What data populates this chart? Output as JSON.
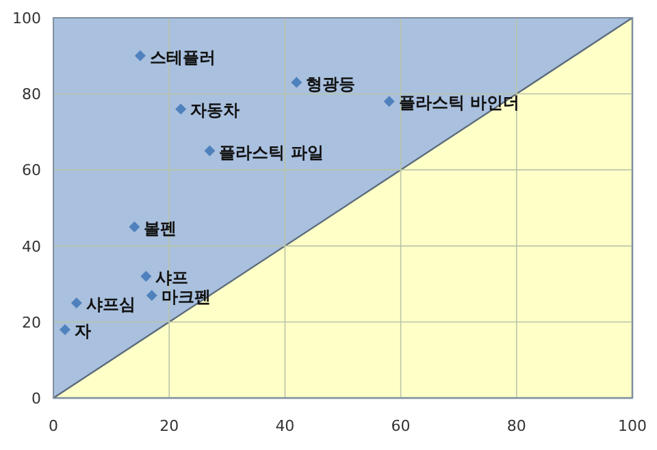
{
  "chart_data": {
    "type": "scatter",
    "xlim": [
      0,
      100
    ],
    "ylim": [
      0,
      100
    ],
    "xticks": [
      0,
      20,
      40,
      60,
      80,
      100
    ],
    "yticks": [
      0,
      20,
      40,
      60,
      80,
      100
    ],
    "grid": true,
    "series": [
      {
        "type": "area",
        "color": "#ffffc8",
        "x": [
          0,
          100
        ],
        "values": [
          0,
          100
        ]
      },
      {
        "marker": "diamond",
        "color": "#4f81bd",
        "x": [
          15,
          42,
          58,
          22,
          27,
          14,
          16,
          17,
          4,
          2
        ],
        "values": [
          90,
          83,
          78,
          76,
          65,
          45,
          32,
          27,
          25,
          18
        ]
      }
    ],
    "annotations": [
      {
        "text": "스테플러",
        "x": 15,
        "y": 90
      },
      {
        "text": "형광등",
        "x": 42,
        "y": 83
      },
      {
        "text": "플라스틱 바인더",
        "x": 58,
        "y": 78
      },
      {
        "text": "자동차",
        "x": 22,
        "y": 76
      },
      {
        "text": "플라스틱 파일",
        "x": 27,
        "y": 65
      },
      {
        "text": "볼펜",
        "x": 14,
        "y": 45
      },
      {
        "text": "샤프",
        "x": 16,
        "y": 32
      },
      {
        "text": "마크펜",
        "x": 17,
        "y": 27
      },
      {
        "text": "샤프심",
        "x": 4,
        "y": 25
      },
      {
        "text": "자",
        "x": 2,
        "y": 18
      }
    ]
  }
}
